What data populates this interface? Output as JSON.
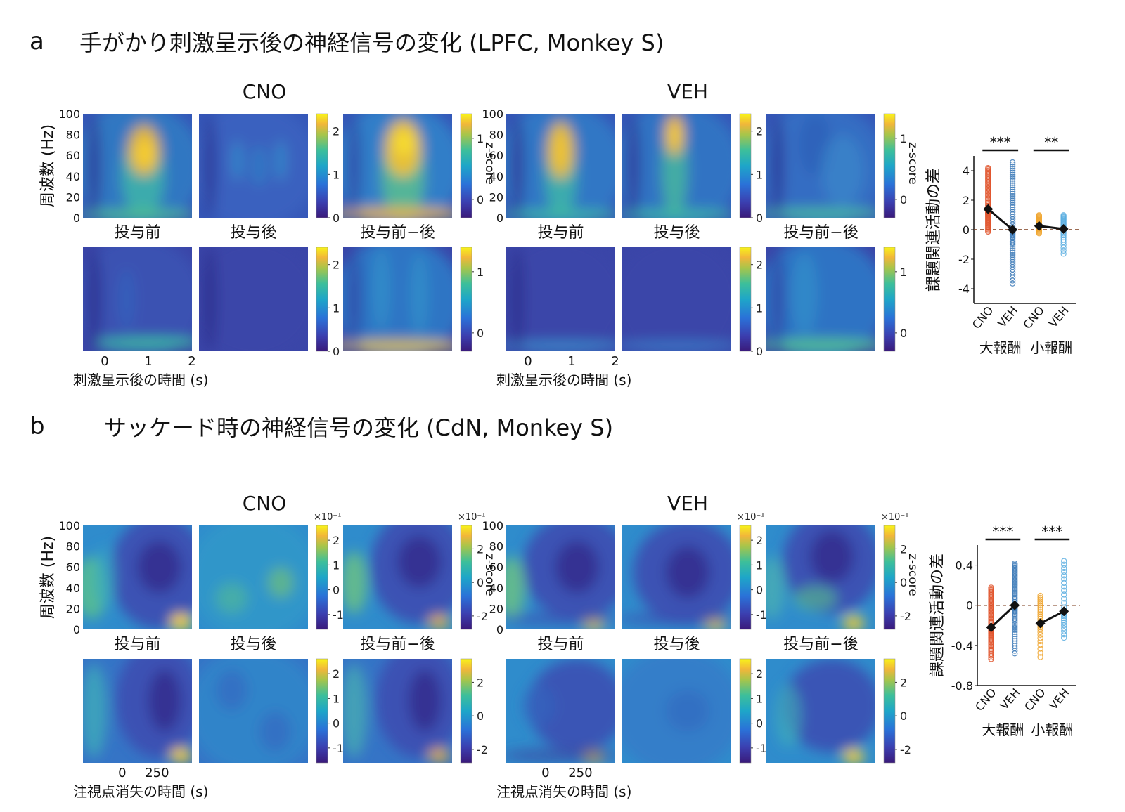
{
  "panels": [
    {
      "letter": "a",
      "title": "手がかり刺激呈示後の神経信号の変化 (LPFC, Monkey S)",
      "group_labels": [
        "CNO",
        "VEH"
      ],
      "col_labels": [
        "投与前",
        "投与後",
        "投与前−後"
      ],
      "row_labels": [
        "大報酬",
        "小報酬"
      ],
      "ylabel": "周波数 (Hz)",
      "yticks": [
        "0",
        "20",
        "40",
        "60",
        "80",
        "100"
      ],
      "xticks": [
        "0",
        "1",
        "2"
      ],
      "xlabel": "刺激呈示後の時間 (s)",
      "colorbar_label": "z-score",
      "colorbars": {
        "CNO": {
          "big": {
            "raw": [
              "0",
              "1",
              "2"
            ],
            "diff": [
              "0",
              "1"
            ]
          },
          "small": {
            "raw": [
              "0",
              "1",
              "2"
            ],
            "diff": [
              "0",
              "1"
            ]
          }
        },
        "VEH": {
          "big": {
            "raw": [
              "0",
              "1",
              "2"
            ],
            "diff": [
              "0",
              "1"
            ]
          },
          "small": {
            "raw": [
              "0",
              "1",
              "2"
            ],
            "diff": [
              "0",
              "1"
            ]
          }
        }
      },
      "multiplier": ""
    },
    {
      "letter": "b",
      "title": "サッケード時の神経信号の変化 (CdN, Monkey S)",
      "group_labels": [
        "CNO",
        "VEH"
      ],
      "col_labels": [
        "投与前",
        "投与後",
        "投与前−後"
      ],
      "row_labels": [
        "大報酬",
        "小報酬"
      ],
      "ylabel": "周波数 (Hz)",
      "yticks": [
        "0",
        "20",
        "40",
        "60",
        "80",
        "100"
      ],
      "xticks": [
        "0",
        "250"
      ],
      "xlabel": "注視点消失の時間 (s)",
      "colorbar_label": "z-score",
      "colorbars": {
        "CNO": {
          "big": {
            "raw": [
              "-1",
              "0",
              "1",
              "2"
            ],
            "diff": [
              "-2",
              "0",
              "2"
            ]
          },
          "small": {
            "raw": [
              "-1",
              "0",
              "1",
              "2"
            ],
            "diff": [
              "-2",
              "0",
              "2"
            ]
          }
        },
        "VEH": {
          "big": {
            "raw": [
              "-1",
              "0",
              "1",
              "2"
            ],
            "diff": [
              "-2",
              "0",
              "2"
            ]
          },
          "small": {
            "raw": [
              "-1",
              "0",
              "1",
              "2"
            ],
            "diff": [
              "-2",
              "0",
              "2"
            ]
          }
        }
      },
      "multiplier": "×10⁻¹"
    }
  ],
  "chart_data": [
    {
      "type": "heatmap",
      "panel": "a",
      "description_axes": {
        "x": "刺激呈示後の時間 (s)",
        "y": "周波数 (Hz)"
      },
      "xlim": [
        -0.5,
        2
      ],
      "ylim": [
        0,
        100
      ],
      "conditions": [
        "CNO",
        "VEH"
      ],
      "periods": [
        "投与前",
        "投与後",
        "投与前−後"
      ],
      "rewards": [
        "大報酬",
        "小報酬"
      ],
      "colorbar_range_raw": [
        0,
        2.4
      ],
      "colorbar_range_diff": [
        -0.3,
        1.4
      ]
    },
    {
      "type": "scatter",
      "panel": "a",
      "ylabel": "課題関連活動の差",
      "ylim": [
        -5,
        5
      ],
      "yticks": [
        -4,
        -2,
        0,
        2,
        4
      ],
      "categories": [
        "CNO",
        "VEH",
        "CNO",
        "VEH"
      ],
      "groups": [
        "大報酬",
        "小報酬"
      ],
      "series_colors": [
        "#e0552d",
        "#3e7bb8",
        "#f0a630",
        "#5aaee0"
      ],
      "spreads": [
        [
          -0.2,
          4.2
        ],
        [
          -3.8,
          4.6
        ],
        [
          -0.3,
          1.0
        ],
        [
          -1.8,
          1.0
        ]
      ],
      "means": [
        1.4,
        0.0,
        0.25,
        0.05
      ],
      "significance": [
        "***",
        "**"
      ]
    },
    {
      "type": "heatmap",
      "panel": "b",
      "description_axes": {
        "x": "注視点消失の時間 (s)",
        "y": "周波数 (Hz)"
      },
      "xlim": [
        -250,
        500
      ],
      "ylim": [
        0,
        100
      ],
      "conditions": [
        "CNO",
        "VEH"
      ],
      "periods": [
        "投与前",
        "投与後",
        "投与前−後"
      ],
      "rewards": [
        "大報酬",
        "小報酬"
      ],
      "colorbar_range_raw": [
        -1.6,
        2.6
      ],
      "colorbar_range_diff": [
        -2.8,
        3.4
      ]
    },
    {
      "type": "scatter",
      "panel": "b",
      "ylabel": "課題関連活動の差",
      "ylim": [
        -0.8,
        0.6
      ],
      "yticks": [
        -0.8,
        -0.4,
        0,
        0.4
      ],
      "ytick_labels": [
        "-0.8",
        "-0.4",
        "0",
        "0.4"
      ],
      "categories": [
        "CNO",
        "VEH",
        "CNO",
        "VEH"
      ],
      "groups": [
        "大報酬",
        "小報酬"
      ],
      "series_colors": [
        "#e0552d",
        "#3e7bb8",
        "#f0a630",
        "#5aaee0"
      ],
      "spreads": [
        [
          -0.55,
          0.18
        ],
        [
          -0.5,
          0.42
        ],
        [
          -0.55,
          0.1
        ],
        [
          -0.35,
          0.45
        ]
      ],
      "means": [
        -0.22,
        0.0,
        -0.18,
        -0.06
      ],
      "significance": [
        "***",
        "***"
      ]
    }
  ]
}
